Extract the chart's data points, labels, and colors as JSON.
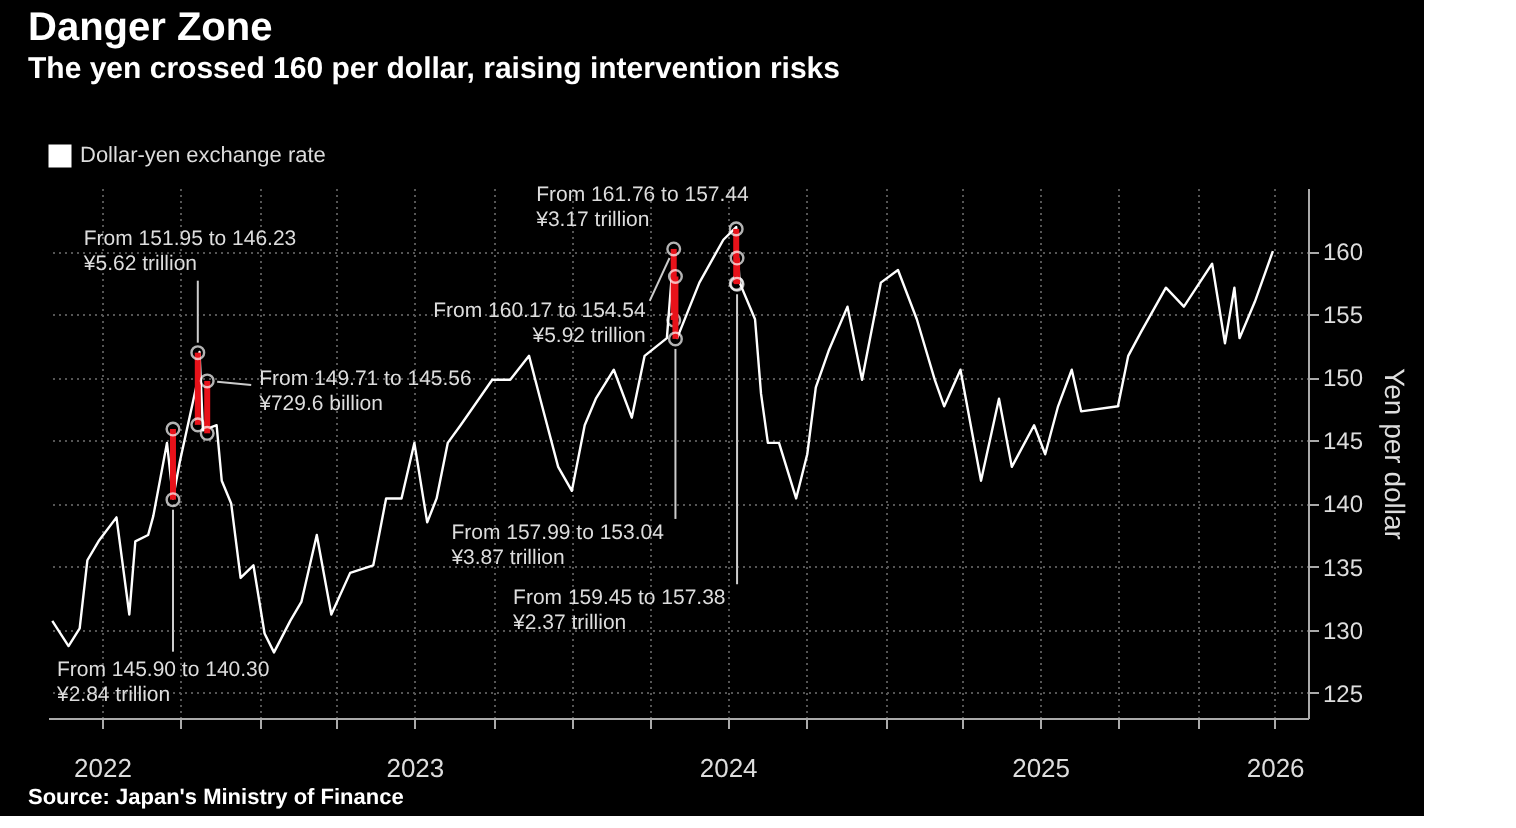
{
  "chart_data": {
    "type": "line",
    "title": "Danger Zone",
    "subtitle": "The yen crossed 160 per dollar, raising intervention risks",
    "ylabel": "Yen per dollar",
    "xlim": [
      "2022-04-29",
      "2026-05-10"
    ],
    "xticks": [
      {
        "value": "2022-07-01",
        "label": "2022"
      },
      {
        "value": "2022-10-01",
        "label": null
      },
      {
        "value": "2023-01-01",
        "label": null
      },
      {
        "value": "2023-04-01",
        "label": null
      },
      {
        "value": "2023-07-01",
        "label": "2023"
      },
      {
        "value": "2023-10-01",
        "label": null
      },
      {
        "value": "2024-01-01",
        "label": null
      },
      {
        "value": "2024-04-01",
        "label": null
      },
      {
        "value": "2024-07-01",
        "label": "2024"
      },
      {
        "value": "2024-10-01",
        "label": null
      },
      {
        "value": "2025-01-01",
        "label": null
      },
      {
        "value": "2025-04-01",
        "label": null
      },
      {
        "value": "2025-07-01",
        "label": "2025"
      },
      {
        "value": "2025-10-01",
        "label": null
      },
      {
        "value": "2026-01-01",
        "label": null
      },
      {
        "value": "2026-04-01",
        "label": "2026"
      }
    ],
    "ylim": [
      123,
      165
    ],
    "yticks": [
      125,
      130,
      135,
      140,
      145,
      150,
      155,
      160
    ],
    "grid": true,
    "legend": "top left",
    "marker": "none",
    "line_style": "solid",
    "series": [
      {
        "name": "Dollar-yen exchange rate",
        "color": "#ffffff",
        "x": [
          "2022-05-04",
          "2022-05-23",
          "2022-06-05",
          "2022-06-14",
          "2022-06-27",
          "2022-07-18",
          "2022-08-02",
          "2022-08-09",
          "2022-08-24",
          "2022-08-30",
          "2022-09-15",
          "2022-09-22",
          "2022-09-30",
          "2022-10-21",
          "2022-10-23",
          "2022-10-27",
          "2022-11-12",
          "2022-11-18",
          "2022-11-29",
          "2022-12-10",
          "2022-12-25",
          "2023-01-07",
          "2023-01-18",
          "2023-02-06",
          "2023-02-19",
          "2023-03-09",
          "2023-03-26",
          "2023-04-17",
          "2023-05-14",
          "2023-05-29",
          "2023-06-16",
          "2023-07-01",
          "2023-07-16",
          "2023-07-27",
          "2023-08-09",
          "2023-08-24",
          "2023-09-30",
          "2023-10-21",
          "2023-11-12",
          "2023-11-25",
          "2023-12-16",
          "2024-01-01",
          "2024-01-16",
          "2024-01-29",
          "2024-02-19",
          "2024-03-11",
          "2024-03-26",
          "2024-04-21",
          "2024-04-29",
          "2024-05-03",
          "2024-05-29",
          "2024-06-26",
          "2024-07-11",
          "2024-07-15",
          "2024-08-02",
          "2024-08-09",
          "2024-08-17",
          "2024-08-30",
          "2024-09-19",
          "2024-10-02",
          "2024-10-12",
          "2024-10-27",
          "2024-11-18",
          "2024-12-05",
          "2024-12-27",
          "2025-01-16",
          "2025-02-07",
          "2025-02-28",
          "2025-03-11",
          "2025-03-30",
          "2025-04-23",
          "2025-05-14",
          "2025-05-29",
          "2025-06-24",
          "2025-07-07",
          "2025-07-22",
          "2025-08-07",
          "2025-08-18",
          "2025-09-30",
          "2025-10-12",
          "2025-10-27",
          "2025-11-25",
          "2025-12-16",
          "2026-01-18",
          "2026-02-02",
          "2026-02-13",
          "2026-02-19",
          "2026-03-09",
          "2026-03-30"
        ],
        "values": [
          130.7,
          128.7,
          130.1,
          135.5,
          137,
          138.9,
          131.2,
          137,
          137.5,
          139,
          144.8,
          140.4,
          143.3,
          149.8,
          152,
          145.8,
          146.2,
          141.8,
          140,
          134.1,
          135.1,
          129.7,
          128.2,
          130.7,
          132.2,
          137.5,
          131.2,
          134.5,
          135.1,
          140.4,
          140.4,
          144.8,
          138.5,
          140.4,
          144.8,
          146.2,
          149.8,
          149.8,
          151.7,
          148.3,
          142.9,
          141,
          146.2,
          148.3,
          150.6,
          146.8,
          151.7,
          153.1,
          160,
          153.1,
          157.5,
          160.9,
          161.9,
          157.5,
          154.6,
          148.7,
          144.8,
          144.8,
          140.4,
          143.9,
          149.2,
          152.1,
          155.6,
          149.8,
          157.5,
          158.5,
          154.6,
          149.8,
          147.7,
          150.6,
          141.8,
          148.3,
          142.9,
          146.2,
          143.9,
          147.7,
          150.6,
          147.3,
          147.7,
          151.7,
          153.6,
          157.1,
          155.6,
          159,
          152.7,
          157.1,
          153.1,
          156,
          160
        ]
      },
      {
        "color": "#e8121a",
        "type": "line",
        "marker": "circle",
        "x": [
          "2022-09-22",
          "2022-09-22"
        ],
        "values": [
          145.9,
          140.3
        ]
      },
      {
        "color": "#e8121a",
        "type": "line",
        "marker": "circle",
        "x": [
          "2022-10-21",
          "2022-10-21"
        ],
        "values": [
          151.95,
          146.23
        ]
      },
      {
        "color": "#e8121a",
        "type": "line",
        "marker": "circle",
        "x": [
          "2022-11-01",
          "2022-11-01"
        ],
        "values": [
          149.71,
          145.56
        ]
      },
      {
        "color": "#e8121a",
        "type": "line",
        "marker": "circle",
        "x": [
          "2024-04-29",
          "2024-04-29"
        ],
        "values": [
          160.17,
          154.54
        ]
      },
      {
        "color": "#e8121a",
        "type": "line",
        "marker": "circle",
        "x": [
          "2024-05-01",
          "2024-05-01"
        ],
        "values": [
          157.99,
          153.04
        ]
      },
      {
        "color": "#e8121a",
        "type": "line",
        "marker": "circle",
        "x": [
          "2024-07-11",
          "2024-07-11"
        ],
        "values": [
          161.76,
          157.44
        ]
      },
      {
        "color": "#e8121a",
        "type": "line",
        "marker": "circle",
        "x": [
          "2024-07-12",
          "2024-07-12"
        ],
        "values": [
          159.45,
          157.38
        ]
      }
    ],
    "annotations": [
      {
        "text": "From 145.90 to 140.30\n¥2.84 trillion",
        "x": "2022-09-22",
        "y": 140.3
      },
      {
        "text": "From 151.95 to 146.23\n¥5.62 trillion",
        "x": "2022-10-21",
        "y": 151.95
      },
      {
        "text": "From 149.71 to 145.56\n¥729.6 billion",
        "x": "2022-11-01",
        "y": 149.71
      },
      {
        "text": "From 160.17 to 154.54\n¥5.92 trillion",
        "x": "2024-04-29",
        "y": 160.17
      },
      {
        "text": "From 157.99 to 153.04\n¥3.87 trillion",
        "x": "2024-05-01",
        "y": 153.04
      },
      {
        "text": "From 161.76 to 157.44\n¥3.17 trillion",
        "x": "2024-07-11",
        "y": 161.76
      },
      {
        "text": "From 159.45 to 157.38\n¥2.37 trillion",
        "x": "2024-07-12",
        "y": 157.38
      },
      "Source: Japan's Ministry of Finance"
    ]
  }
}
